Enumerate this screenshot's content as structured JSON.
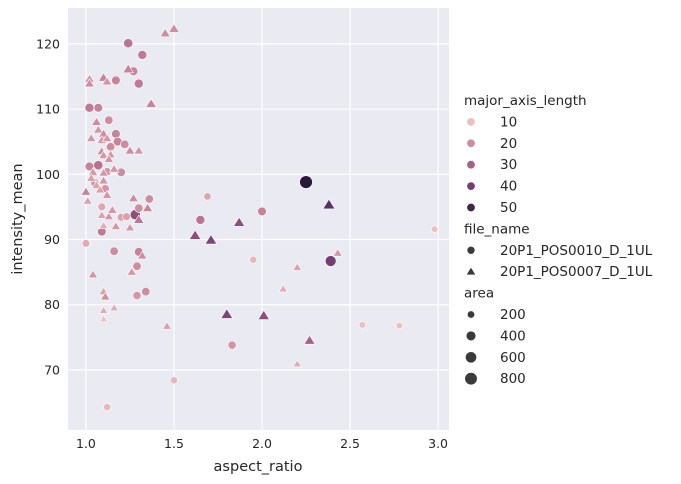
{
  "chart_data": {
    "type": "scatter",
    "xlabel": "aspect_ratio",
    "ylabel": "intensity_mean",
    "xlim": [
      0.898,
      3.062
    ],
    "ylim": [
      57.1,
      125.5
    ],
    "xticks": [
      "1.0",
      "1.5",
      "2.0",
      "2.5",
      "3.0"
    ],
    "xtick_values": [
      1.0,
      1.5,
      2.0,
      2.5,
      3.0
    ],
    "yticks": [
      "70",
      "80",
      "90",
      "100",
      "110",
      "120"
    ],
    "ytick_values": [
      70,
      80,
      90,
      100,
      110,
      120
    ],
    "grid": true,
    "background": "#eaeaf2",
    "legend": {
      "placement": "right",
      "hue_title": "major_axis_length",
      "hue_entries": [
        "10",
        "20",
        "30",
        "40",
        "50"
      ],
      "hue_values": [
        10,
        20,
        30,
        40,
        50
      ],
      "style_title": "file_name",
      "style_entries": [
        {
          "label": "20P1_POS0010_D_1UL",
          "marker": "circle"
        },
        {
          "label": "20P1_POS0007_D_1UL",
          "marker": "triangle"
        }
      ],
      "size_title": "area",
      "size_entries": [
        "200",
        "400",
        "600",
        "800"
      ],
      "size_values": [
        200,
        400,
        600,
        800
      ]
    },
    "palette": [
      "#f3cbc4",
      "#d799a5",
      "#b46d8f",
      "#874a7c",
      "#553063",
      "#2a1a3a"
    ],
    "palette_range": [
      8,
      55
    ],
    "fields": [
      "aspect_ratio",
      "intensity_mean",
      "major_axis_length",
      "file_name",
      "area"
    ],
    "points": [
      [
        1.24,
        120.1,
        25,
        "20P1_POS0010_D_1UL",
        350
      ],
      [
        1.32,
        118.3,
        24,
        "20P1_POS0010_D_1UL",
        330
      ],
      [
        1.27,
        115.8,
        22,
        "20P1_POS0010_D_1UL",
        300
      ],
      [
        1.17,
        114.4,
        22,
        "20P1_POS0010_D_1UL",
        300
      ],
      [
        1.3,
        113.9,
        24,
        "20P1_POS0010_D_1UL",
        330
      ],
      [
        1.02,
        110.2,
        24,
        "20P1_POS0010_D_1UL",
        330
      ],
      [
        1.07,
        110.2,
        22,
        "20P1_POS0010_D_1UL",
        300
      ],
      [
        1.13,
        108.3,
        20,
        "20P1_POS0010_D_1UL",
        280
      ],
      [
        1.1,
        105.8,
        22,
        "20P1_POS0010_D_1UL",
        280
      ],
      [
        1.17,
        106.2,
        22,
        "20P1_POS0010_D_1UL",
        300
      ],
      [
        1.18,
        105.0,
        22,
        "20P1_POS0010_D_1UL",
        300
      ],
      [
        1.22,
        104.6,
        20,
        "20P1_POS0010_D_1UL",
        280
      ],
      [
        1.14,
        104.2,
        20,
        "20P1_POS0010_D_1UL",
        280
      ],
      [
        1.02,
        101.2,
        22,
        "20P1_POS0010_D_1UL",
        300
      ],
      [
        1.07,
        101.4,
        26,
        "20P1_POS0010_D_1UL",
        350
      ],
      [
        1.2,
        100.3,
        20,
        "20P1_POS0010_D_1UL",
        280
      ],
      [
        1.12,
        100.4,
        18,
        "20P1_POS0010_D_1UL",
        260
      ],
      [
        1.05,
        98.7,
        18,
        "20P1_POS0010_D_1UL",
        260
      ],
      [
        1.11,
        97.8,
        18,
        "20P1_POS0010_D_1UL",
        250
      ],
      [
        1.09,
        95.0,
        15,
        "20P1_POS0010_D_1UL",
        220
      ],
      [
        1.2,
        93.4,
        16,
        "20P1_POS0010_D_1UL",
        230
      ],
      [
        1.23,
        93.5,
        16,
        "20P1_POS0010_D_1UL",
        230
      ],
      [
        1.36,
        96.2,
        20,
        "20P1_POS0010_D_1UL",
        270
      ],
      [
        1.28,
        93.8,
        35,
        "20P1_POS0010_D_1UL",
        450
      ],
      [
        1.3,
        94.8,
        20,
        "20P1_POS0010_D_1UL",
        280
      ],
      [
        1.69,
        96.6,
        15,
        "20P1_POS0010_D_1UL",
        200
      ],
      [
        1.65,
        93.0,
        25,
        "20P1_POS0010_D_1UL",
        330
      ],
      [
        2.0,
        94.3,
        22,
        "20P1_POS0010_D_1UL",
        300
      ],
      [
        1.0,
        89.4,
        14,
        "20P1_POS0010_D_1UL",
        220
      ],
      [
        1.09,
        91.2,
        24,
        "20P1_POS0010_D_1UL",
        300
      ],
      [
        1.3,
        88.1,
        22,
        "20P1_POS0010_D_1UL",
        300
      ],
      [
        1.16,
        88.2,
        20,
        "20P1_POS0010_D_1UL",
        280
      ],
      [
        1.29,
        85.9,
        20,
        "20P1_POS0010_D_1UL",
        270
      ],
      [
        1.29,
        81.4,
        18,
        "20P1_POS0010_D_1UL",
        260
      ],
      [
        1.34,
        82.0,
        20,
        "20P1_POS0010_D_1UL",
        280
      ],
      [
        1.95,
        86.9,
        12,
        "20P1_POS0010_D_1UL",
        180
      ],
      [
        2.25,
        98.8,
        55,
        "20P1_POS0010_D_1UL",
        850
      ],
      [
        2.39,
        86.7,
        40,
        "20P1_POS0010_D_1UL",
        550
      ],
      [
        1.83,
        73.8,
        18,
        "20P1_POS0010_D_1UL",
        260
      ],
      [
        1.5,
        68.4,
        12,
        "20P1_POS0010_D_1UL",
        180
      ],
      [
        1.12,
        64.3,
        12,
        "20P1_POS0010_D_1UL",
        180
      ],
      [
        2.57,
        76.9,
        10,
        "20P1_POS0010_D_1UL",
        160
      ],
      [
        2.78,
        76.8,
        10,
        "20P1_POS0010_D_1UL",
        160
      ],
      [
        2.98,
        91.6,
        10,
        "20P1_POS0010_D_1UL",
        160
      ],
      [
        1.5,
        122.3,
        20,
        "20P1_POS0007_D_1UL",
        300
      ],
      [
        1.45,
        121.6,
        20,
        "20P1_POS0007_D_1UL",
        280
      ],
      [
        1.24,
        116.1,
        22,
        "20P1_POS0007_D_1UL",
        300
      ],
      [
        1.37,
        110.8,
        22,
        "20P1_POS0007_D_1UL",
        300
      ],
      [
        1.1,
        114.8,
        22,
        "20P1_POS0007_D_1UL",
        280
      ],
      [
        1.02,
        114.6,
        18,
        "20P1_POS0007_D_1UL",
        260
      ],
      [
        1.02,
        113.9,
        20,
        "20P1_POS0007_D_1UL",
        250
      ],
      [
        1.12,
        114.2,
        18,
        "20P1_POS0007_D_1UL",
        250
      ],
      [
        1.06,
        108.0,
        20,
        "20P1_POS0007_D_1UL",
        250
      ],
      [
        1.07,
        106.8,
        18,
        "20P1_POS0007_D_1UL",
        230
      ],
      [
        1.1,
        106.2,
        20,
        "20P1_POS0007_D_1UL",
        250
      ],
      [
        1.09,
        105.2,
        18,
        "20P1_POS0007_D_1UL",
        230
      ],
      [
        1.12,
        105.5,
        18,
        "20P1_POS0007_D_1UL",
        220
      ],
      [
        1.03,
        105.5,
        18,
        "20P1_POS0007_D_1UL",
        230
      ],
      [
        1.09,
        103.5,
        20,
        "20P1_POS0007_D_1UL",
        240
      ],
      [
        1.1,
        102.9,
        18,
        "20P1_POS0007_D_1UL",
        230
      ],
      [
        1.14,
        103.0,
        18,
        "20P1_POS0007_D_1UL",
        220
      ],
      [
        1.25,
        103.6,
        20,
        "20P1_POS0007_D_1UL",
        250
      ],
      [
        1.3,
        103.6,
        18,
        "20P1_POS0007_D_1UL",
        240
      ],
      [
        1.13,
        102.3,
        18,
        "20P1_POS0007_D_1UL",
        220
      ],
      [
        1.04,
        100.3,
        18,
        "20P1_POS0007_D_1UL",
        230
      ],
      [
        1.1,
        100.2,
        18,
        "20P1_POS0007_D_1UL",
        220
      ],
      [
        1.16,
        100.8,
        18,
        "20P1_POS0007_D_1UL",
        220
      ],
      [
        1.03,
        99.4,
        16,
        "20P1_POS0007_D_1UL",
        220
      ],
      [
        1.1,
        99.0,
        18,
        "20P1_POS0007_D_1UL",
        230
      ],
      [
        1.0,
        97.3,
        22,
        "20P1_POS0007_D_1UL",
        250
      ],
      [
        1.01,
        95.9,
        16,
        "20P1_POS0007_D_1UL",
        200
      ],
      [
        1.06,
        98.3,
        16,
        "20P1_POS0007_D_1UL",
        210
      ],
      [
        1.08,
        97.6,
        16,
        "20P1_POS0007_D_1UL",
        210
      ],
      [
        1.12,
        96.8,
        18,
        "20P1_POS0007_D_1UL",
        220
      ],
      [
        1.09,
        93.7,
        16,
        "20P1_POS0007_D_1UL",
        200
      ],
      [
        1.13,
        93.5,
        18,
        "20P1_POS0007_D_1UL",
        210
      ],
      [
        1.15,
        94.5,
        18,
        "20P1_POS0007_D_1UL",
        230
      ],
      [
        1.27,
        96.3,
        20,
        "20P1_POS0007_D_1UL",
        250
      ],
      [
        1.35,
        94.8,
        22,
        "20P1_POS0007_D_1UL",
        260
      ],
      [
        1.3,
        93.0,
        25,
        "20P1_POS0007_D_1UL",
        280
      ],
      [
        1.1,
        92.1,
        14,
        "20P1_POS0007_D_1UL",
        190
      ],
      [
        1.17,
        92.0,
        18,
        "20P1_POS0007_D_1UL",
        220
      ],
      [
        1.25,
        91.8,
        18,
        "20P1_POS0007_D_1UL",
        210
      ],
      [
        1.62,
        90.6,
        35,
        "20P1_POS0007_D_1UL",
        380
      ],
      [
        1.71,
        89.9,
        38,
        "20P1_POS0007_D_1UL",
        400
      ],
      [
        1.87,
        92.6,
        35,
        "20P1_POS0007_D_1UL",
        350
      ],
      [
        2.38,
        95.3,
        45,
        "20P1_POS0007_D_1UL",
        420
      ],
      [
        2.43,
        87.9,
        18,
        "20P1_POS0007_D_1UL",
        200
      ],
      [
        2.2,
        85.7,
        16,
        "20P1_POS0007_D_1UL",
        190
      ],
      [
        1.04,
        84.6,
        18,
        "20P1_POS0007_D_1UL",
        220
      ],
      [
        1.32,
        87.5,
        20,
        "20P1_POS0007_D_1UL",
        230
      ],
      [
        1.26,
        85.0,
        18,
        "20P1_POS0007_D_1UL",
        210
      ],
      [
        1.1,
        82.0,
        16,
        "20P1_POS0007_D_1UL",
        200
      ],
      [
        1.11,
        81.2,
        20,
        "20P1_POS0007_D_1UL",
        220
      ],
      [
        1.16,
        79.5,
        14,
        "20P1_POS0007_D_1UL",
        180
      ],
      [
        1.1,
        79.1,
        14,
        "20P1_POS0007_D_1UL",
        180
      ],
      [
        1.1,
        77.8,
        10,
        "20P1_POS0007_D_1UL",
        160
      ],
      [
        1.46,
        76.7,
        16,
        "20P1_POS0007_D_1UL",
        190
      ],
      [
        1.8,
        78.5,
        38,
        "20P1_POS0007_D_1UL",
        400
      ],
      [
        2.01,
        78.3,
        35,
        "20P1_POS0007_D_1UL",
        380
      ],
      [
        2.12,
        82.4,
        14,
        "20P1_POS0007_D_1UL",
        180
      ],
      [
        2.27,
        74.5,
        30,
        "20P1_POS0007_D_1UL",
        320
      ],
      [
        2.2,
        70.9,
        14,
        "20P1_POS0007_D_1UL",
        170
      ]
    ]
  }
}
